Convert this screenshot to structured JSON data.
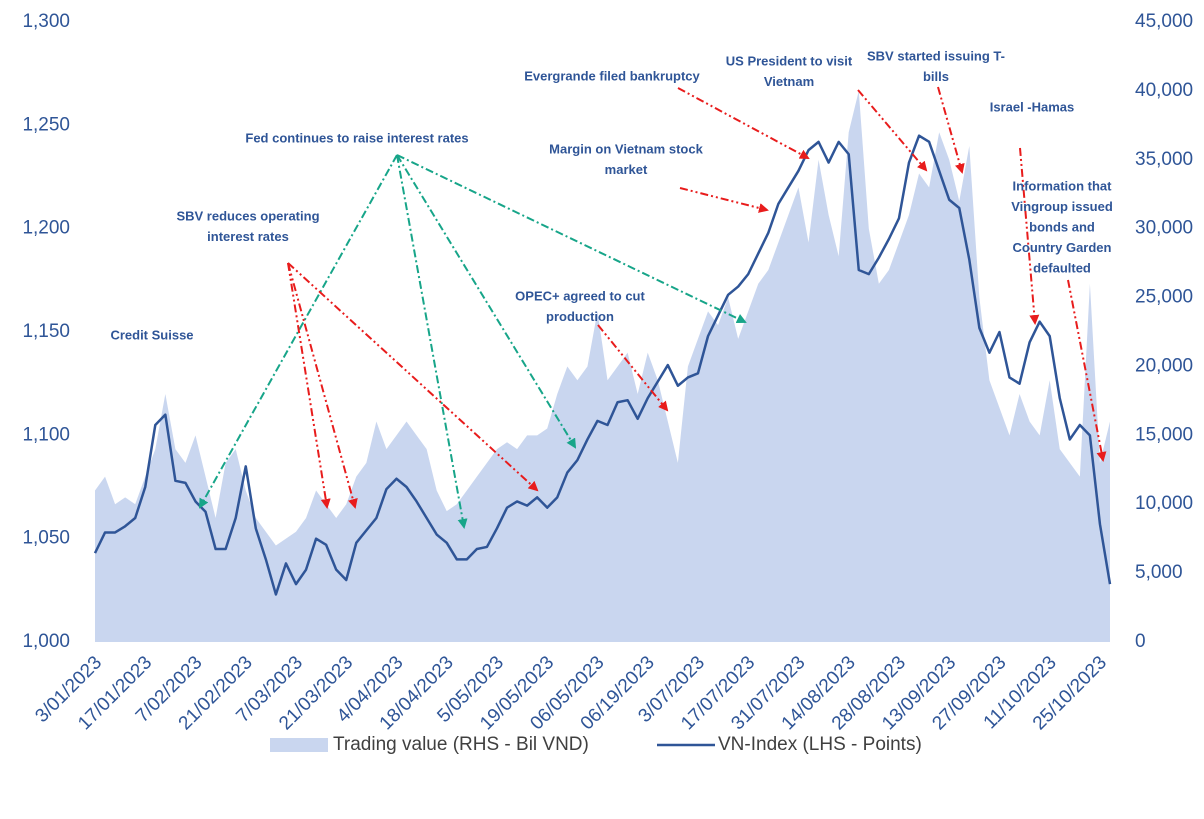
{
  "chart_data": {
    "type": "combo",
    "categories": [
      "3/01/2023",
      null,
      null,
      null,
      null,
      "17/01/2023",
      null,
      null,
      null,
      null,
      "7/02/2023",
      null,
      null,
      null,
      null,
      "21/02/2023",
      null,
      null,
      null,
      null,
      "7/03/2023",
      null,
      null,
      null,
      null,
      "21/03/2023",
      null,
      null,
      null,
      null,
      "4/04/2023",
      null,
      null,
      null,
      null,
      "18/04/2023",
      null,
      null,
      null,
      null,
      "5/05/2023",
      null,
      null,
      null,
      null,
      "19/05/2023",
      null,
      null,
      null,
      null,
      "06/05/2023",
      null,
      null,
      null,
      null,
      "06/19/2023",
      null,
      null,
      null,
      null,
      "3/07/2023",
      null,
      null,
      null,
      null,
      "17/07/2023",
      null,
      null,
      null,
      null,
      "31/07/2023",
      null,
      null,
      null,
      null,
      "14/08/2023",
      null,
      null,
      null,
      null,
      "28/08/2023",
      null,
      null,
      null,
      null,
      "13/09/2023",
      null,
      null,
      null,
      null,
      "27/09/2023",
      null,
      null,
      null,
      null,
      "11/10/2023",
      null,
      null,
      null,
      null,
      "25/10/2023",
      null
    ],
    "series": [
      {
        "name": "Trading value (RHS - Bil VND)",
        "type": "area",
        "axis": "y2",
        "color": "#c9d6ef",
        "values": [
          11000,
          12000,
          10000,
          10500,
          10000,
          12000,
          14000,
          18000,
          14000,
          13000,
          15000,
          12000,
          9000,
          13000,
          14000,
          11000,
          9000,
          8000,
          7000,
          7500,
          8000,
          9000,
          11000,
          10000,
          9000,
          10000,
          12000,
          13000,
          16000,
          14000,
          15000,
          16000,
          15000,
          14000,
          11000,
          9500,
          10000,
          11000,
          12000,
          13000,
          14000,
          14500,
          14000,
          15000,
          15000,
          15500,
          18000,
          20000,
          19000,
          20000,
          24000,
          19000,
          20000,
          21000,
          18000,
          21000,
          19000,
          16000,
          13000,
          20000,
          22000,
          24000,
          23000,
          25000,
          22000,
          24000,
          26000,
          27000,
          29000,
          31000,
          33000,
          29000,
          35000,
          31000,
          28000,
          37000,
          40000,
          30000,
          26000,
          27000,
          29000,
          31000,
          34000,
          33000,
          37000,
          35000,
          32000,
          36000,
          25000,
          19000,
          17000,
          15000,
          18000,
          16000,
          15000,
          19000,
          14000,
          13000,
          12000,
          26000,
          13000,
          16000
        ]
      },
      {
        "name": "VN-Index (LHS - Points)",
        "type": "line",
        "color": "#2f5597",
        "values": [
          1043,
          1053,
          1053,
          1056,
          1060,
          1075,
          1105,
          1110,
          1078,
          1077,
          1068,
          1063,
          1045,
          1045,
          1060,
          1085,
          1055,
          1040,
          1023,
          1038,
          1028,
          1035,
          1050,
          1047,
          1035,
          1030,
          1048,
          1054,
          1060,
          1074,
          1079,
          1075,
          1068,
          1060,
          1052,
          1048,
          1040,
          1040,
          1045,
          1046,
          1055,
          1065,
          1068,
          1066,
          1070,
          1065,
          1070,
          1082,
          1088,
          1098,
          1107,
          1105,
          1116,
          1117,
          1108,
          1118,
          1126,
          1134,
          1124,
          1128,
          1130,
          1148,
          1158,
          1168,
          1172,
          1178,
          1188,
          1198,
          1212,
          1220,
          1228,
          1238,
          1242,
          1232,
          1242,
          1236,
          1180,
          1178,
          1186,
          1195,
          1205,
          1232,
          1245,
          1242,
          1228,
          1214,
          1210,
          1185,
          1152,
          1140,
          1150,
          1128,
          1125,
          1145,
          1155,
          1148,
          1118,
          1098,
          1105,
          1100,
          1057,
          1028
        ]
      }
    ],
    "ylim": [
      1000,
      1300
    ],
    "yticks": [
      {
        "value": 1000,
        "label": "1,000"
      },
      {
        "value": 1050,
        "label": "1,050"
      },
      {
        "value": 1100,
        "label": "1,100"
      },
      {
        "value": 1150,
        "label": "1,150"
      },
      {
        "value": 1200,
        "label": "1,200"
      },
      {
        "value": 1250,
        "label": "1,250"
      },
      {
        "value": 1300,
        "label": "1,300"
      }
    ],
    "y2lim": [
      0,
      45000
    ],
    "y2ticks": [
      0,
      {
        "value": 5000,
        "label": "5,000"
      },
      {
        "value": 10000,
        "label": "10,000"
      },
      {
        "value": 15000,
        "label": "15,000"
      },
      {
        "value": 20000,
        "label": "20,000"
      },
      {
        "value": 25000,
        "label": "25,000"
      },
      {
        "value": 30000,
        "label": "30,000"
      },
      {
        "value": 35000,
        "label": "35,000"
      },
      {
        "value": 40000,
        "label": "40,000"
      },
      {
        "value": 45000,
        "label": "45,000"
      }
    ],
    "legend": "bottom",
    "annotations": [
      [
        "Credit Suisse"
      ],
      [
        "SBV reduces operating",
        "interest rates"
      ],
      [
        "Fed continues to raise interest rates"
      ],
      [
        "Evergrande filed bankruptcy"
      ],
      [
        "Margin on Vietnam stock",
        "market"
      ],
      [
        "OPEC+ agreed to cut",
        "production"
      ],
      [
        "US President to visit",
        "Vietnam"
      ],
      [
        "SBV started issuing T-",
        "bills"
      ],
      [
        "Israel -Hamas"
      ],
      [
        "Information that",
        "Vingroup issued",
        "bonds and",
        "Country Garden",
        "defaulted"
      ]
    ]
  }
}
